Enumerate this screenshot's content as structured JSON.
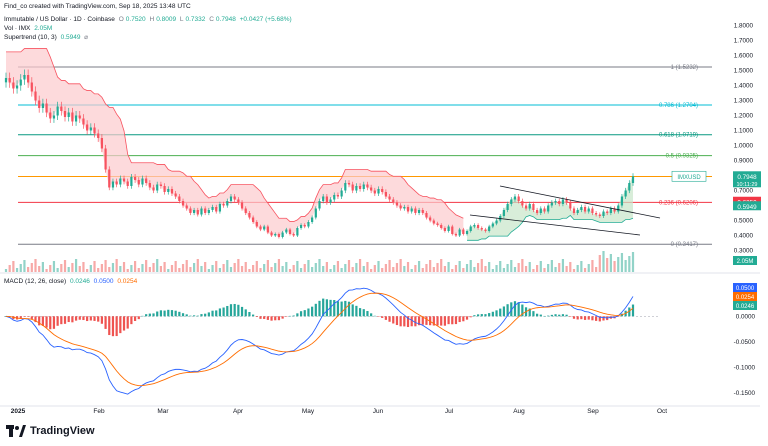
{
  "header": {
    "author_line": "Find_co created with TradingView.com, Sep 18, 2025 13:48 UTC",
    "title": "Immutable / US Dollar · 1D · Coinbase",
    "o_label": "O",
    "o_val": "0.7520",
    "h_label": "H",
    "h_val": "0.8009",
    "l_label": "L",
    "l_val": "0.7332",
    "c_label": "C",
    "c_val": "0.7948",
    "change": "+0.0427 (+5.68%)",
    "vol_label": "Vol · IMX",
    "vol_val": "2.05M",
    "supertrend_label": "Supertrend (10, 3)",
    "supertrend_val": "0.5949",
    "macd_label": "MACD (12, 26, close)",
    "macd_val1": "0.0246",
    "macd_val2": "0.0500",
    "macd_val3": "0.0254"
  },
  "logo": {
    "text": "TradingView"
  },
  "colors": {
    "up": "#22ab94",
    "down": "#f7525f",
    "macd": "#2962ff",
    "signal": "#ff6d00",
    "fib0": "#787b86",
    "fib236": "#f23645",
    "fib382": "#ff9800",
    "fib5": "#4caf50",
    "fib618": "#089981",
    "fib786": "#00bcd4",
    "fib1": "#787b86",
    "st_down": "#fccbcd",
    "st_up": "#c8e6c9"
  },
  "chart_data": [
    {
      "type": "candlestick",
      "title": "Immutable / US Dollar · 1D · Coinbase",
      "xlabels": [
        "2025",
        "Feb",
        "Mar",
        "Apr",
        "May",
        "Jun",
        "Jul",
        "Aug",
        "Sep",
        "Oct"
      ],
      "price_axis": [
        "1.8000",
        "1.7000",
        "1.6000",
        "1.5000",
        "1.4000",
        "1.3000",
        "1.2000",
        "1.1000",
        "1.0000",
        "0.9000",
        "0.8000",
        "0.7000",
        "0.6000",
        "0.5000",
        "0.4000",
        "0.3000"
      ],
      "ylim": [
        0.25,
        1.85
      ],
      "fib_levels": [
        {
          "label": "1 (1.5232)",
          "value": 1.5232
        },
        {
          "label": "0.786 (1.2704)",
          "value": 1.2704
        },
        {
          "label": "0.618 (1.0719)",
          "value": 1.0719
        },
        {
          "label": "0.5 (0.9325)",
          "value": 0.9325
        },
        {
          "label": "0.382",
          "value": 0.7931
        },
        {
          "label": "0.236 (0.6206)",
          "value": 0.6206
        },
        {
          "label": "0 (0.3417)",
          "value": 0.3417
        }
      ],
      "price_tags": [
        {
          "label": "IMXUSD",
          "value": "0.7948",
          "sub": "10:11:29",
          "color": "#22ab94"
        },
        {
          "label": "",
          "value": "0.6250",
          "sub": "",
          "color": "#f23645"
        },
        {
          "label": "",
          "value": "0.5949",
          "sub": "",
          "color": "#22ab94"
        }
      ],
      "volume_tag": "2.05M",
      "close_series": [
        1.45,
        1.42,
        1.38,
        1.4,
        1.44,
        1.47,
        1.42,
        1.36,
        1.3,
        1.25,
        1.28,
        1.22,
        1.18,
        1.2,
        1.26,
        1.23,
        1.19,
        1.22,
        1.16,
        1.2,
        1.18,
        1.14,
        1.1,
        1.12,
        1.08,
        1.05,
        0.98,
        0.84,
        0.72,
        0.76,
        0.74,
        0.78,
        0.76,
        0.73,
        0.79,
        0.77,
        0.74,
        0.78,
        0.75,
        0.72,
        0.7,
        0.74,
        0.73,
        0.69,
        0.71,
        0.68,
        0.66,
        0.63,
        0.6,
        0.58,
        0.55,
        0.57,
        0.54,
        0.58,
        0.55,
        0.57,
        0.59,
        0.56,
        0.61,
        0.6,
        0.63,
        0.66,
        0.64,
        0.62,
        0.58,
        0.55,
        0.52,
        0.49,
        0.46,
        0.44,
        0.46,
        0.42,
        0.4,
        0.41,
        0.39,
        0.42,
        0.44,
        0.41,
        0.4,
        0.45,
        0.47,
        0.46,
        0.49,
        0.52,
        0.58,
        0.63,
        0.66,
        0.62,
        0.64,
        0.67,
        0.66,
        0.7,
        0.75,
        0.74,
        0.7,
        0.73,
        0.71,
        0.74,
        0.72,
        0.7,
        0.68,
        0.71,
        0.69,
        0.66,
        0.64,
        0.62,
        0.6,
        0.58,
        0.59,
        0.56,
        0.58,
        0.55,
        0.57,
        0.55,
        0.52,
        0.5,
        0.48,
        0.47,
        0.45,
        0.43,
        0.46,
        0.41,
        0.4,
        0.44,
        0.41,
        0.43,
        0.46,
        0.47,
        0.45,
        0.44,
        0.43,
        0.46,
        0.48,
        0.5,
        0.53,
        0.57,
        0.61,
        0.64,
        0.66,
        0.63,
        0.6,
        0.58,
        0.61,
        0.57,
        0.55,
        0.58,
        0.56,
        0.6,
        0.62,
        0.63,
        0.61,
        0.64,
        0.62,
        0.58,
        0.55,
        0.57,
        0.59,
        0.56,
        0.58,
        0.55,
        0.54,
        0.53,
        0.56,
        0.55,
        0.58,
        0.56,
        0.6,
        0.66,
        0.7,
        0.75,
        0.7948
      ],
      "macd_axis": [
        "0.0500",
        "0.0000",
        "-0.0500",
        "-0.1000",
        "-0.1500"
      ],
      "macd_ylim": [
        -0.16,
        0.075
      ]
    }
  ]
}
